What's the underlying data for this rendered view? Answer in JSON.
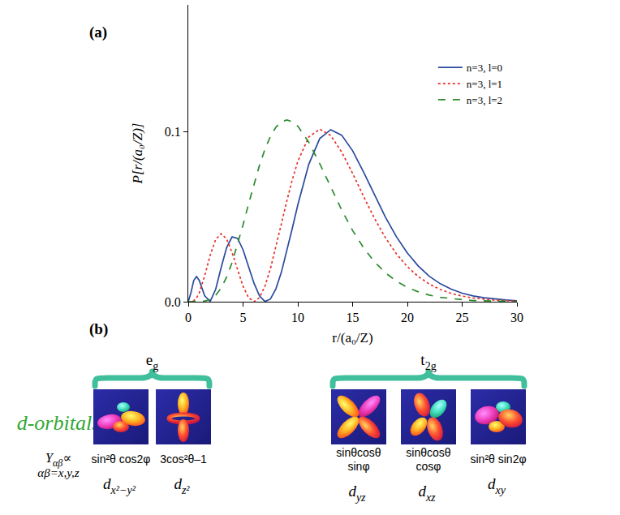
{
  "chart_data": {
    "type": "line",
    "x_label": "r/(a₀/Z)",
    "y_label": "P[r/(a₀/Z)]",
    "x": [
      0,
      0.25,
      0.5,
      0.75,
      1,
      1.5,
      2,
      2.5,
      3,
      3.5,
      4,
      4.5,
      5,
      5.5,
      6,
      6.5,
      7,
      7.5,
      8,
      8.5,
      9,
      9.5,
      10,
      11,
      12,
      13,
      14,
      15,
      16,
      17,
      18,
      19,
      20,
      21,
      22,
      23,
      24,
      25,
      26,
      27,
      28,
      29,
      30
    ],
    "series": [
      {
        "name": "n=3, l=0",
        "color": "#2a4a9c",
        "line_style": "solid",
        "values": [
          0,
          0.0055,
          0.0125,
          0.0148,
          0.0126,
          0.0034,
          0.0002,
          0.0073,
          0.0201,
          0.0319,
          0.0382,
          0.0373,
          0.0306,
          0.0208,
          0.0109,
          0.0034,
          0.0001,
          0.0016,
          0.0076,
          0.0174,
          0.0298,
          0.0434,
          0.0571,
          0.081,
          0.0962,
          0.1014,
          0.0982,
          0.089,
          0.0764,
          0.0628,
          0.0498,
          0.0383,
          0.0287,
          0.021,
          0.015,
          0.0106,
          0.0074,
          0.005,
          0.0034,
          0.0023,
          0.0015,
          0.001,
          0.0006
        ]
      },
      {
        "name": "n=3, l=1",
        "color": "#e8302a",
        "line_style": "dotted",
        "values": [
          0,
          0.0,
          0.0006,
          0.0022,
          0.0052,
          0.0153,
          0.0274,
          0.0367,
          0.0401,
          0.037,
          0.0289,
          0.0187,
          0.0091,
          0.0024,
          0,
          0.0024,
          0.0092,
          0.0195,
          0.0322,
          0.0459,
          0.0595,
          0.072,
          0.0828,
          0.0971,
          0.1017,
          0.098,
          0.0883,
          0.0757,
          0.0621,
          0.0491,
          0.0377,
          0.0282,
          0.0206,
          0.0148,
          0.0104,
          0.0072,
          0.0049,
          0.0033,
          0.0022,
          0.0015,
          0.0009,
          0.0006,
          0.0004
        ]
      },
      {
        "name": "n=3, l=2",
        "color": "#2e8b2e",
        "line_style": "dashed",
        "values": [
          0,
          0,
          0,
          0,
          4e-05,
          0.0003,
          0.0014,
          0.0038,
          0.008,
          0.0145,
          0.0231,
          0.0336,
          0.0453,
          0.0575,
          0.0695,
          0.0804,
          0.0899,
          0.0975,
          0.1029,
          0.1061,
          0.1071,
          0.1061,
          0.1035,
          0.094,
          0.0814,
          0.0676,
          0.0541,
          0.042,
          0.0318,
          0.0235,
          0.017,
          0.0121,
          0.0084,
          0.0058,
          0.0039,
          0.0026,
          0.0018,
          0.0012,
          0.0007,
          0.0005,
          0.0003,
          0.0002,
          0.0001
        ]
      }
    ],
    "xlim": [
      0,
      30
    ],
    "xticks": [
      0,
      5,
      10,
      15,
      20,
      25,
      30
    ],
    "ylim": [
      0,
      0.175
    ],
    "yticks": [
      {
        "value": 0,
        "label": "0.0"
      },
      {
        "value": 0.1,
        "label": "0.1"
      }
    ],
    "grid": false,
    "legend": "upper right"
  },
  "panel_labels": [
    "(a)",
    "(b)"
  ],
  "diagram": {
    "title": "d-orbitals",
    "formula": {
      "symbol": "Y",
      "symbol_subscript": "αβ",
      "relation": "∝",
      "note": "αβ=x,y,z"
    },
    "groups": [
      {
        "label": "e",
        "subscript": "g",
        "orbitals": [
          {
            "function": [
              "sin²θ cos2φ"
            ],
            "label": "d",
            "subscript": "x²−y²"
          },
          {
            "function": [
              "3cos²θ–1"
            ],
            "label": "d",
            "subscript": "z²"
          }
        ]
      },
      {
        "label": "t",
        "subscript": "2g",
        "orbitals": [
          {
            "function": [
              "sinθcosθ",
              "sinφ"
            ],
            "label": "d",
            "subscript": "yz"
          },
          {
            "function": [
              "sinθcosθ",
              "cosφ"
            ],
            "label": "d",
            "subscript": "xz"
          },
          {
            "function": [
              "sin²θ sin2φ"
            ],
            "label": "d",
            "subscript": "xy"
          }
        ]
      }
    ]
  }
}
